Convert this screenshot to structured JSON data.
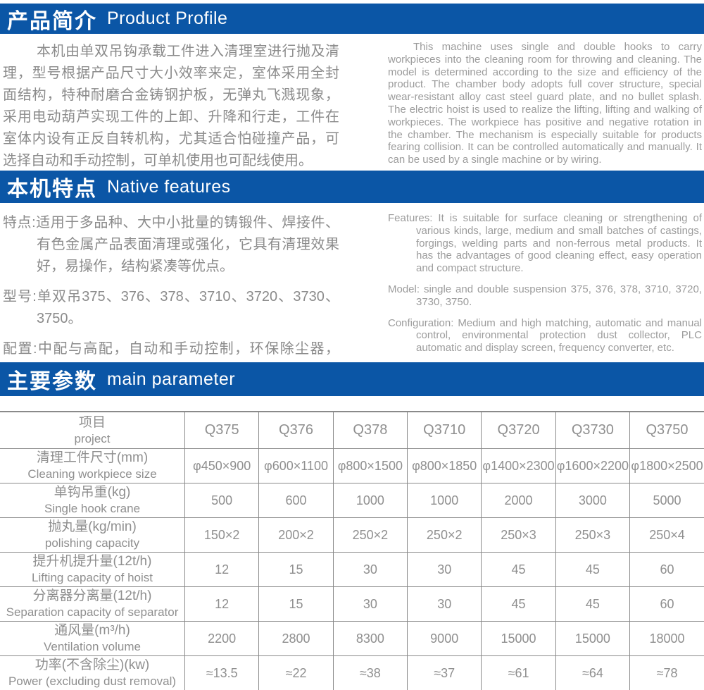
{
  "theme": {
    "accent_blue": "#0B56A6",
    "body_text_gray": "#8B8B8B",
    "table_border_gray": "#8A8A8A"
  },
  "profile": {
    "title_zh": "产品简介",
    "title_en": "Product Profile",
    "zh": "本机由单双吊钩承载工件进入清理室进行抛及清理，型号根据产品尺寸大小效率来定，室体采用全封面结构，特种耐磨合金铸钢护板，无弹丸飞溅现象，采用电动葫芦实现工件的上卸、升降和行走，工件在室体内设有正反自转机构，尤其适合怕碰撞产品，可选择自动和手动控制，可单机使用也可配线使用。",
    "en": "This machine uses single and double hooks to carry workpieces into the cleaning room for throwing and cleaning. The model is determined according to the size and efficiency of the product. The chamber body adopts full cover structure, special wear-resistant alloy cast steel guard plate, and no bullet splash. The electric hoist is used to realize the lifting, lifting and walking of workpieces. The workpiece has positive and negative rotation in the chamber. The mechanism is especially suitable for products fearing collision. It can be controlled automatically and manually. It can be used by a single machine or by wiring."
  },
  "features": {
    "title_zh": "本机特点",
    "title_en": "Native features",
    "zh_items": [
      {
        "label": "特点:",
        "text": "适用于多品种、大中小批量的铸锻件、焊接件、有色金属产品表面清理或强化，它具有清理效果好，易操作，结构紧凑等优点。"
      },
      {
        "label": "型号:",
        "text": "单双吊375、376、378、3710、3720、3730、3750。"
      },
      {
        "label": "配置:",
        "text": "中配与高配，自动和手动控制，环保除尘器，PLC全自动及显示屏、变频器等。"
      }
    ],
    "en_items": [
      {
        "label": "Features:",
        "text": " It is suitable for surface cleaning or strengthening of various kinds, large, medium and small batches of castings, forgings, welding parts and non-ferrous metal products. It has the advantages of good cleaning effect, easy operation and compact structure."
      },
      {
        "label": "Model:",
        "text": " single and double suspension 375, 376, 378, 3710, 3720, 3730, 3750."
      },
      {
        "label": "Configuration:",
        "text": " Medium and high matching, automatic and manual control, environmental protection dust collector, PLC automatic and display screen, frequency converter, etc."
      }
    ]
  },
  "parameters": {
    "title_zh": "主要参数",
    "title_en": "main parameter",
    "table": {
      "header": {
        "label_zh": "项目",
        "label_en": "project",
        "models": [
          "Q375",
          "Q376",
          "Q378",
          "Q3710",
          "Q3720",
          "Q3730",
          "Q3750"
        ]
      },
      "rows": [
        {
          "zh": "清理工件尺寸(mm)",
          "en": "Cleaning workpiece size",
          "values": [
            "φ450×900",
            "φ600×1100",
            "φ800×1500",
            "φ800×1850",
            "φ1400×2300",
            "φ1600×2200",
            "φ1800×2500"
          ]
        },
        {
          "zh": "单钩吊重(kg)",
          "en": "Single hook crane",
          "values": [
            "500",
            "600",
            "1000",
            "1000",
            "2000",
            "3000",
            "5000"
          ]
        },
        {
          "zh": "抛丸量(kg/min)",
          "en": "polishing capacity",
          "values": [
            "150×2",
            "200×2",
            "250×2",
            "250×2",
            "250×3",
            "250×3",
            "250×4"
          ]
        },
        {
          "zh": "提升机提升量(12t/h)",
          "en": "Lifting capacity of hoist",
          "values": [
            "12",
            "15",
            "30",
            "30",
            "45",
            "45",
            "60"
          ]
        },
        {
          "zh": "分离器分离量(12t/h)",
          "en": "Separation capacity of separator",
          "values": [
            "12",
            "15",
            "30",
            "30",
            "45",
            "45",
            "60"
          ]
        },
        {
          "zh": "通风量(m³/h)",
          "en": "Ventilation volume",
          "values": [
            "2200",
            "2800",
            "8300",
            "9000",
            "15000",
            "15000",
            "18000"
          ]
        },
        {
          "zh": "功率(不含除尘)(kw)",
          "en": "Power (excluding dust removal)",
          "values": [
            "≈13.5",
            "≈22",
            "≈38",
            "≈37",
            "≈61",
            "≈64",
            "≈78"
          ]
        }
      ]
    }
  }
}
